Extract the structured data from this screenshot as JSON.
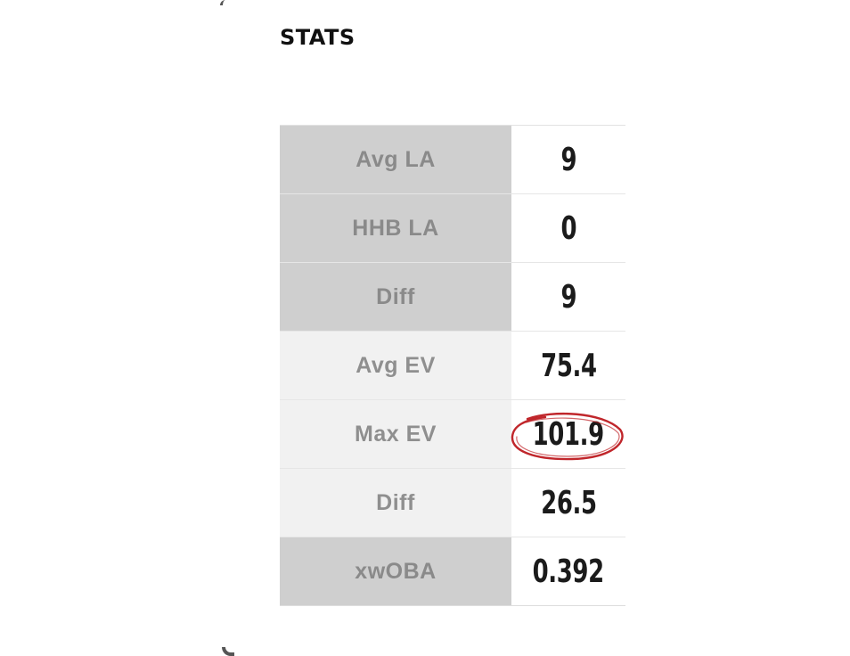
{
  "section": {
    "title": "STATS"
  },
  "stats": [
    {
      "label": "Avg LA",
      "value": "9",
      "shade": "dark"
    },
    {
      "label": "HHB LA",
      "value": "0",
      "shade": "dark"
    },
    {
      "label": "Diff",
      "value": "9",
      "shade": "dark"
    },
    {
      "label": "Avg EV",
      "value": "75.4",
      "shade": "light"
    },
    {
      "label": "Max EV",
      "value": "101.9",
      "shade": "light",
      "highlighted": true
    },
    {
      "label": "Diff",
      "value": "26.5",
      "shade": "light"
    },
    {
      "label": "xwOBA",
      "value": "0.392",
      "shade": "dark"
    }
  ],
  "colors": {
    "dark_label_bg": "#cfcfcf",
    "light_label_bg": "#f1f1f1",
    "highlight_ring": "#c0262b"
  }
}
